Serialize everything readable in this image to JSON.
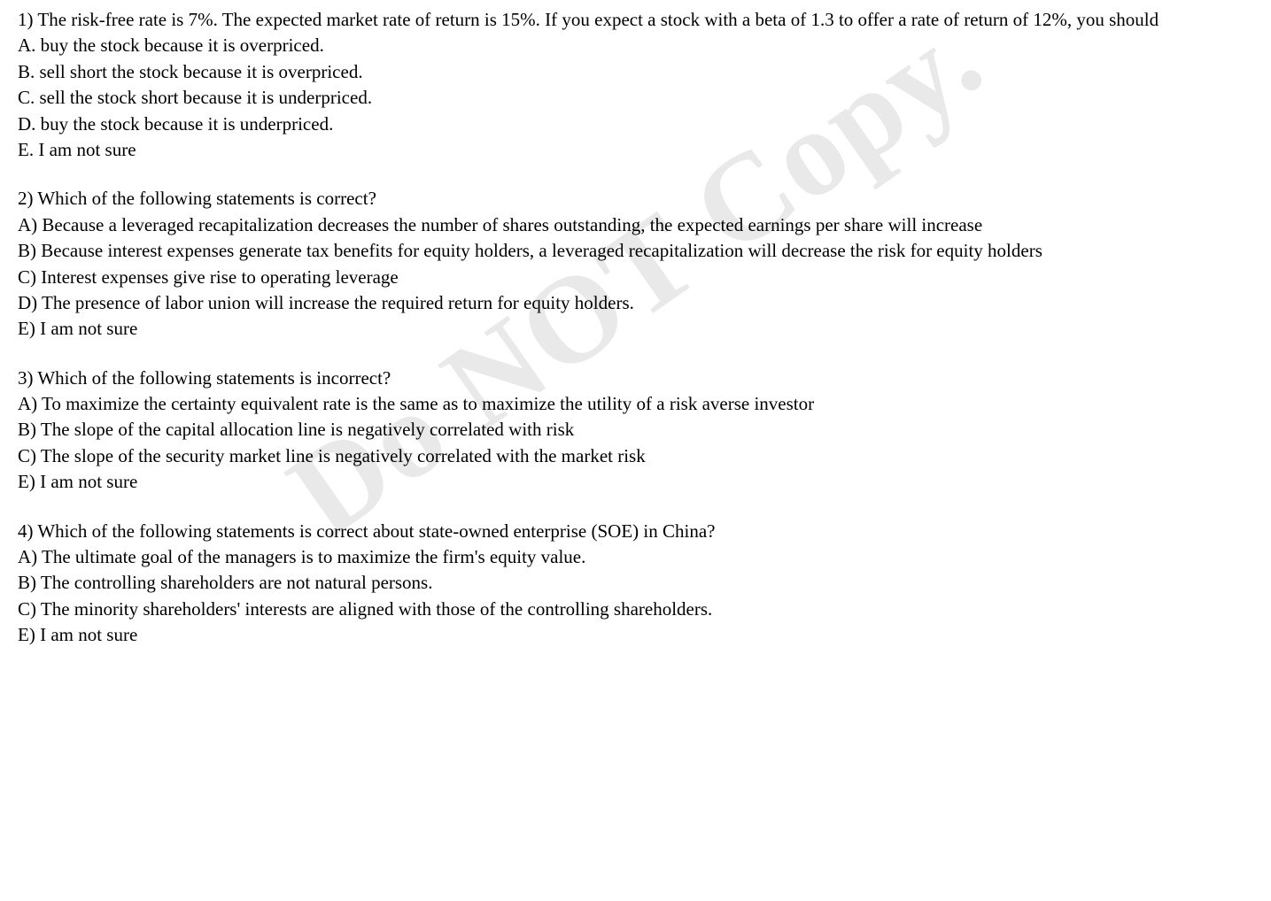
{
  "watermark_text": "Do NOT Copy.",
  "questions": [
    {
      "prompt": "1) The risk-free rate is 7%. The expected market rate of return is 15%. If you expect a stock with a beta of 1.3 to offer a rate of return of 12%, you should",
      "options": [
        "A. buy the stock because it is overpriced.",
        "B. sell short the stock because it is overpriced.",
        "C. sell the stock short because it is underpriced.",
        "D. buy the stock because it is underpriced.",
        "E. I am not sure"
      ]
    },
    {
      "prompt": "2) Which of the following statements is correct?",
      "options": [
        "A) Because a leveraged recapitalization decreases the number of shares outstanding, the expected earnings per share will increase",
        "B) Because interest expenses generate tax benefits for equity holders, a leveraged recapitalization will decrease the risk for equity holders",
        "C) Interest expenses give rise to operating leverage",
        "D) The presence of labor union will increase the required return for equity holders.",
        "E) I am not sure"
      ],
      "justified": [
        0,
        1
      ]
    },
    {
      "prompt": "3) Which of the following statements is incorrect?",
      "options": [
        "A) To maximize the certainty equivalent rate is the same as to maximize the utility of a risk averse investor",
        "B) The slope of the capital allocation line is negatively correlated with risk",
        "C) The slope of the security market line is negatively correlated with the market risk",
        "E) I am not sure"
      ]
    },
    {
      "prompt": "4) Which of the following statements is correct about state-owned enterprise (SOE) in China?",
      "options": [
        "A)  The ultimate goal of the managers is to maximize the firm's equity value.",
        "B)  The controlling shareholders are not natural persons.",
        "C)  The minority shareholders' interests are aligned with those of the controlling shareholders.",
        "E)  I am not sure"
      ]
    }
  ]
}
